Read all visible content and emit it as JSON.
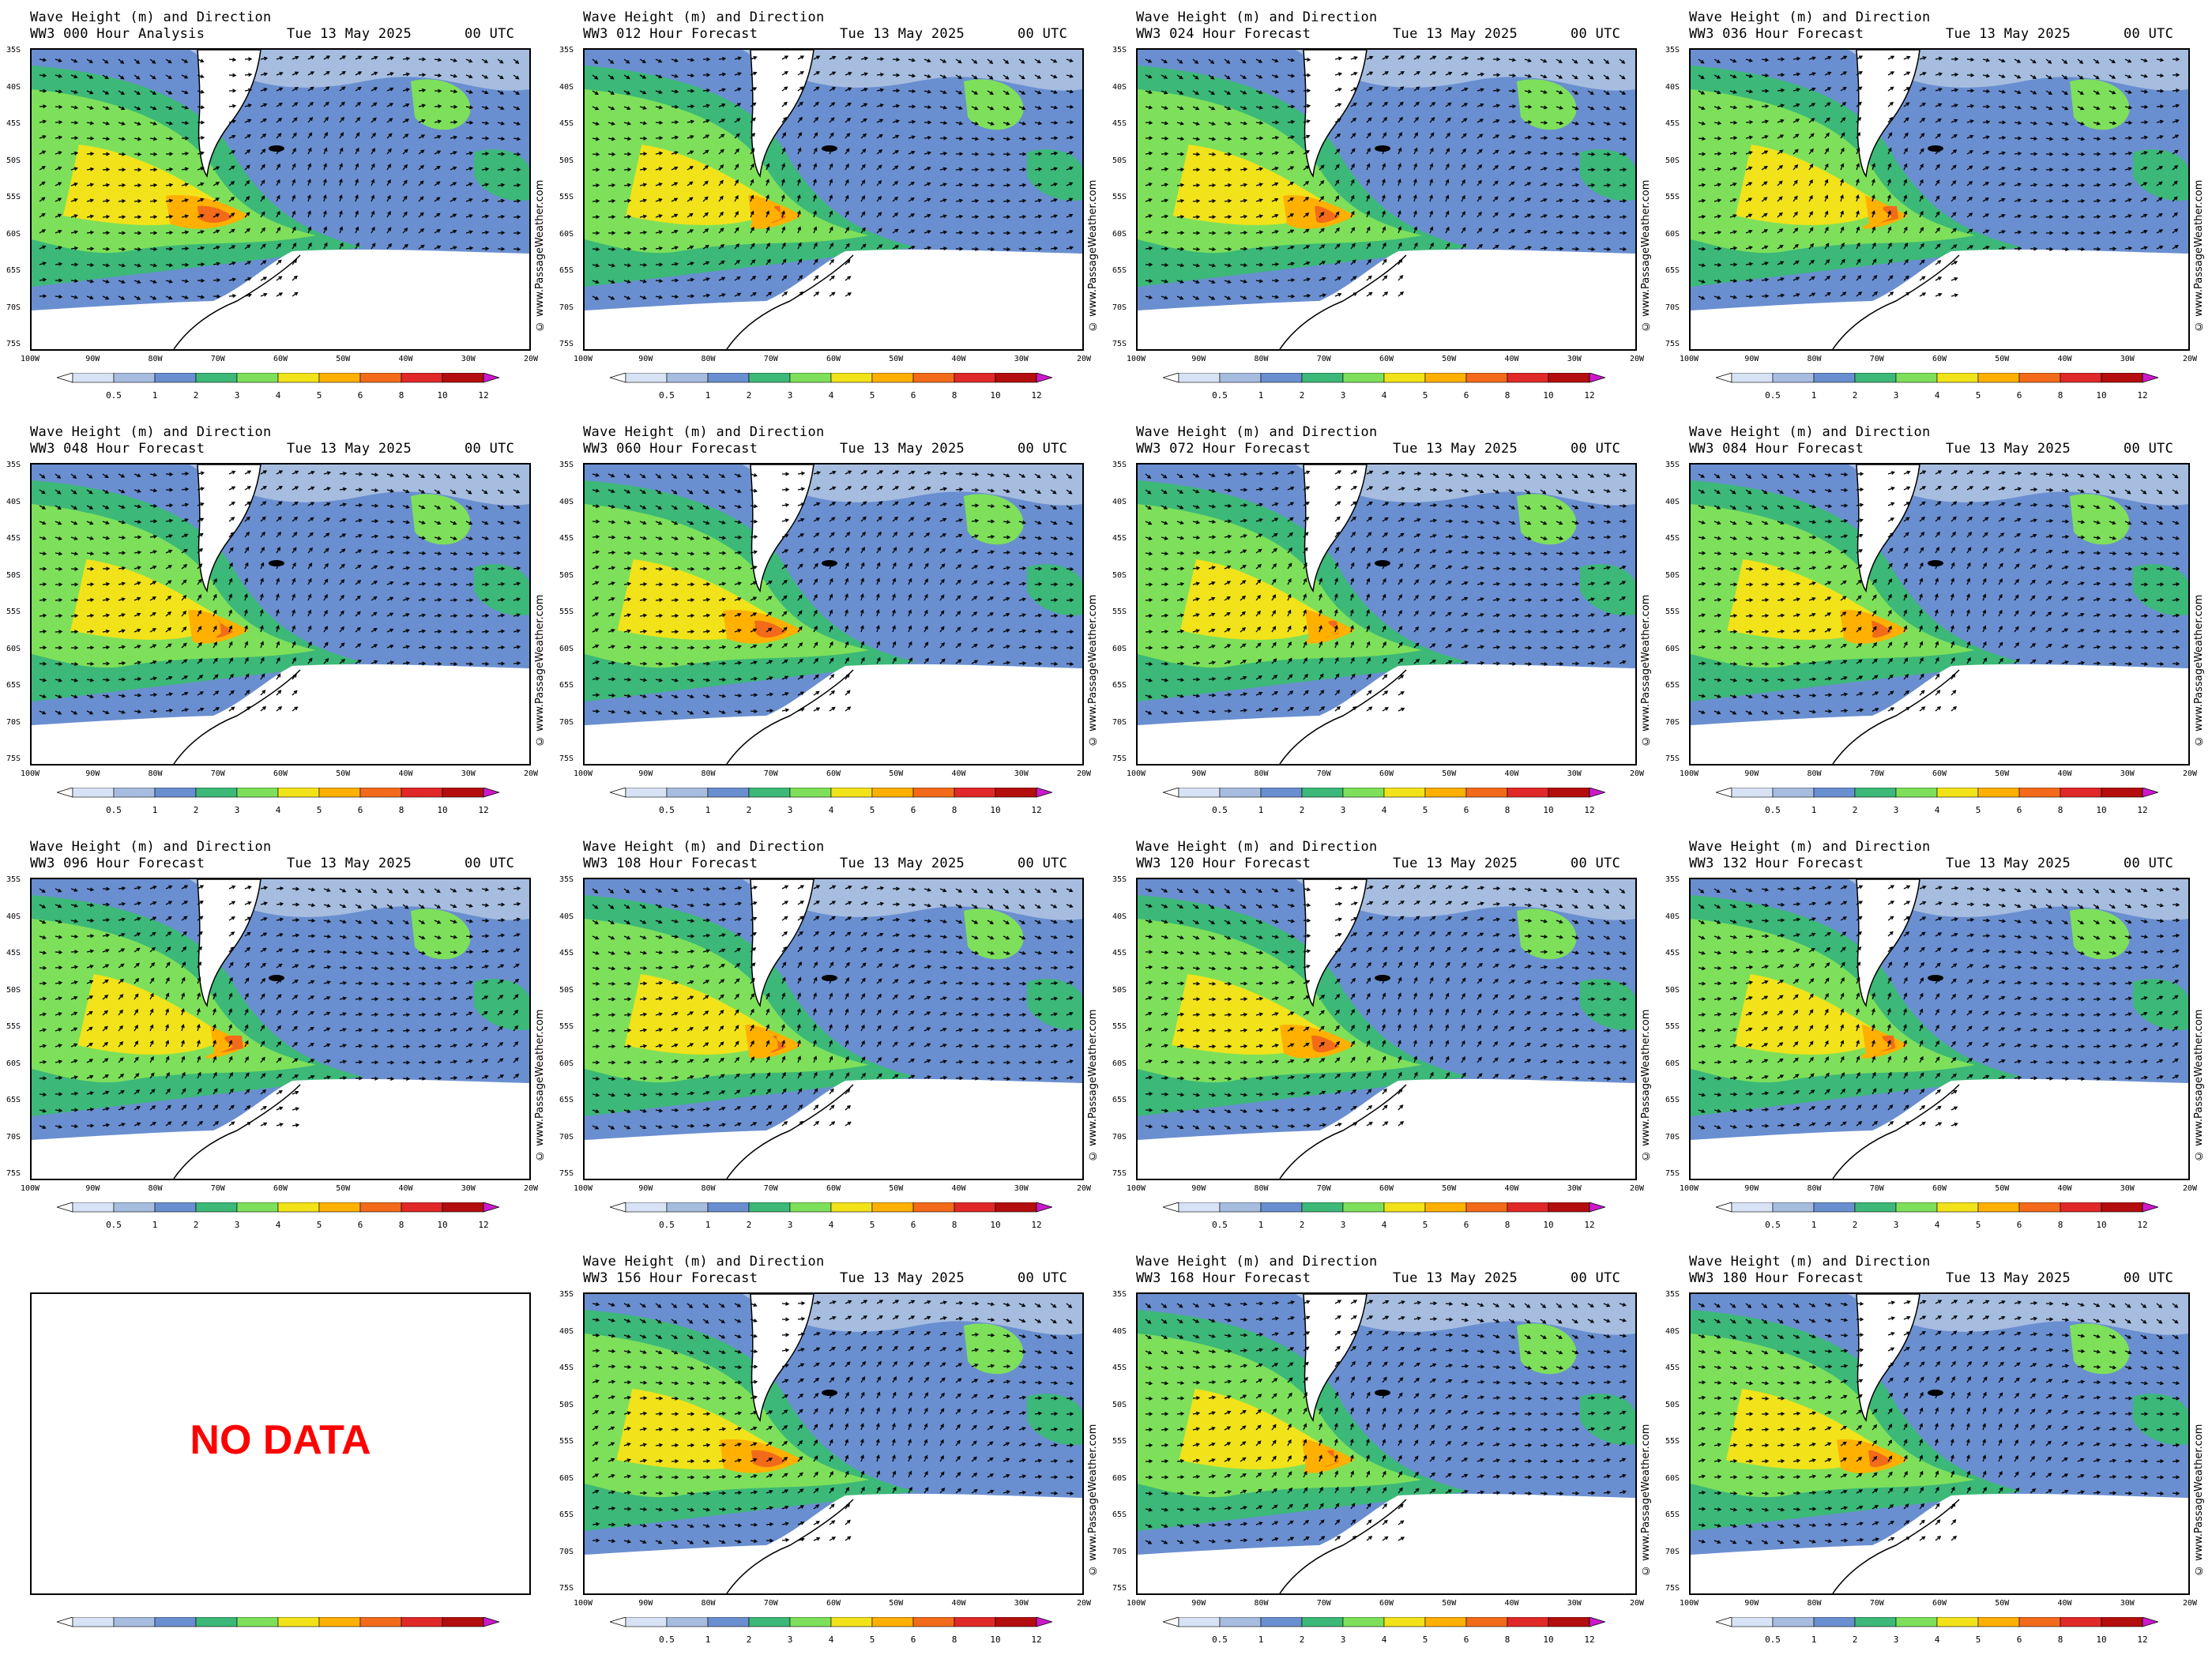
{
  "common": {
    "title": "Wave Height (m) and Direction",
    "date": "Tue 13 May 2025",
    "time": "00 UTC",
    "credit": "© www.PassageWeather.com",
    "lat_labels": [
      "35S",
      "40S",
      "45S",
      "50S",
      "55S",
      "60S",
      "65S",
      "70S",
      "75S"
    ],
    "lon_labels": [
      "100W",
      "90W",
      "80W",
      "70W",
      "60W",
      "50W",
      "40W",
      "30W",
      "20W"
    ],
    "colorbar_ticks": [
      "0.5",
      "1",
      "2",
      "3",
      "4",
      "5",
      "6",
      "8",
      "10",
      "12"
    ],
    "colorbar_colors": [
      "#ffffff",
      "#d7e3f4",
      "#a6bde0",
      "#6a8fd0",
      "#3cb878",
      "#7ee05a",
      "#f2e21a",
      "#ffb000",
      "#f26a1a",
      "#e02828",
      "#b40d0d",
      "#cc19cc"
    ]
  },
  "panels": [
    {
      "run": "WW3 000 Hour Analysis",
      "no_data": false
    },
    {
      "run": "WW3 012 Hour Forecast",
      "no_data": false
    },
    {
      "run": "WW3 024 Hour Forecast",
      "no_data": false
    },
    {
      "run": "WW3 036 Hour Forecast",
      "no_data": false
    },
    {
      "run": "WW3 048 Hour Forecast",
      "no_data": false
    },
    {
      "run": "WW3 060 Hour Forecast",
      "no_data": false
    },
    {
      "run": "WW3 072 Hour Forecast",
      "no_data": false
    },
    {
      "run": "WW3 084 Hour Forecast",
      "no_data": false
    },
    {
      "run": "WW3 096 Hour Forecast",
      "no_data": false
    },
    {
      "run": "WW3 108 Hour Forecast",
      "no_data": false
    },
    {
      "run": "WW3 120 Hour Forecast",
      "no_data": false
    },
    {
      "run": "WW3 132 Hour Forecast",
      "no_data": false
    },
    {
      "run": "",
      "no_data": true,
      "no_data_text": "NO DATA"
    },
    {
      "run": "WW3 156 Hour Forecast",
      "no_data": false
    },
    {
      "run": "WW3 168 Hour Forecast",
      "no_data": false
    },
    {
      "run": "WW3 180 Hour Forecast",
      "no_data": false
    }
  ]
}
